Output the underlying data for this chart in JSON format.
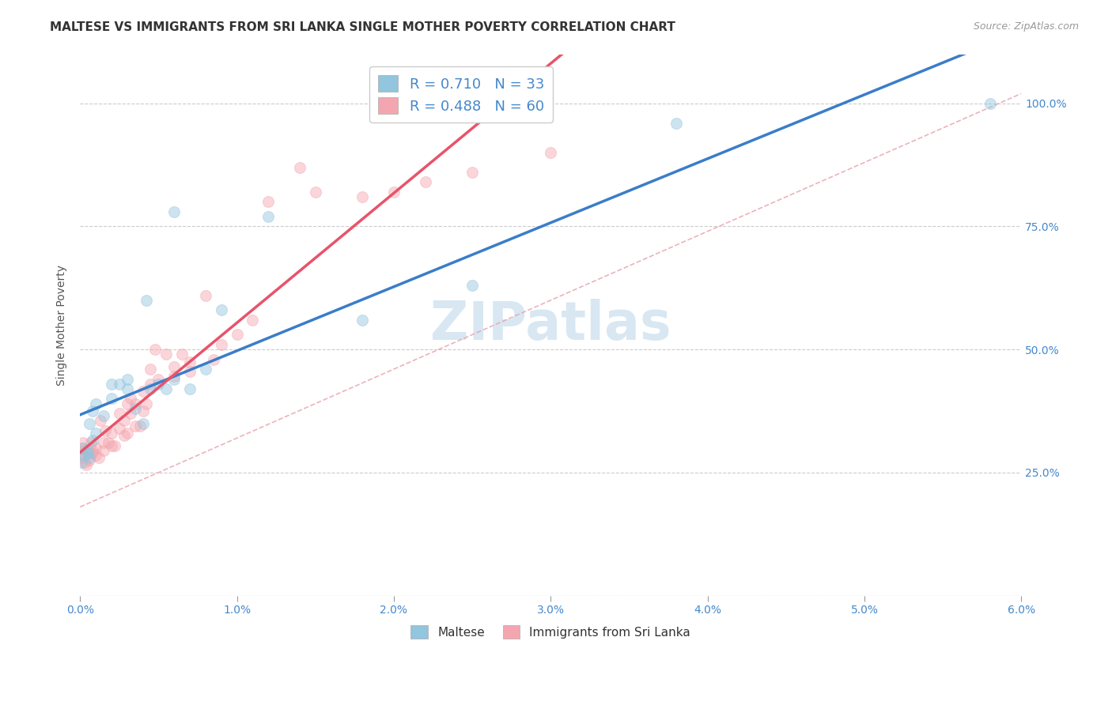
{
  "title": "MALTESE VS IMMIGRANTS FROM SRI LANKA SINGLE MOTHER POVERTY CORRELATION CHART",
  "source": "Source: ZipAtlas.com",
  "ylabel": "Single Mother Poverty",
  "xlim": [
    0.0,
    0.06
  ],
  "ylim": [
    0.0,
    1.1
  ],
  "yticks": [
    0.0,
    0.25,
    0.5,
    0.75,
    1.0
  ],
  "ytick_labels_right": [
    "",
    "25.0%",
    "50.0%",
    "75.0%",
    "100.0%"
  ],
  "xticks": [
    0.0,
    0.01,
    0.02,
    0.03,
    0.04,
    0.05,
    0.06
  ],
  "xtick_labels": [
    "0.0%",
    "1.0%",
    "2.0%",
    "3.0%",
    "4.0%",
    "5.0%",
    "6.0%"
  ],
  "legend_blue_r": "R = 0.710",
  "legend_blue_n": "N = 33",
  "legend_pink_r": "R = 0.488",
  "legend_pink_n": "N = 60",
  "legend_blue_label": "Maltese",
  "legend_pink_label": "Immigrants from Sri Lanka",
  "blue_color": "#92c5de",
  "pink_color": "#f4a6b0",
  "blue_line_color": "#3a7dc9",
  "pink_line_color": "#e8536a",
  "diag_color": "#f4a6b0",
  "watermark": "ZIPatlas",
  "blue_scatter_x": [
    0.0005,
    0.0008,
    0.0006,
    0.001,
    0.0005,
    0.0002,
    0.0001,
    0.0003,
    0.0006,
    0.0008,
    0.001,
    0.0015,
    0.002,
    0.002,
    0.0025,
    0.003,
    0.003,
    0.0035,
    0.004,
    0.0042,
    0.0045,
    0.005,
    0.0055,
    0.006,
    0.006,
    0.007,
    0.008,
    0.009,
    0.012,
    0.018,
    0.025,
    0.038,
    0.058
  ],
  "blue_scatter_y": [
    0.295,
    0.315,
    0.28,
    0.33,
    0.29,
    0.3,
    0.27,
    0.285,
    0.35,
    0.375,
    0.39,
    0.365,
    0.4,
    0.43,
    0.43,
    0.42,
    0.44,
    0.38,
    0.35,
    0.6,
    0.42,
    0.43,
    0.42,
    0.44,
    0.78,
    0.42,
    0.46,
    0.58,
    0.77,
    0.56,
    0.63,
    0.96,
    1.0
  ],
  "pink_scatter_x": [
    5e-05,
    0.0001,
    0.0001,
    0.0002,
    0.0003,
    0.0003,
    0.0004,
    0.0006,
    0.0007,
    0.0007,
    0.0008,
    0.0008,
    0.001,
    0.001,
    0.0012,
    0.0013,
    0.0015,
    0.0015,
    0.0016,
    0.0018,
    0.002,
    0.002,
    0.0022,
    0.0025,
    0.0025,
    0.0028,
    0.0028,
    0.003,
    0.003,
    0.0032,
    0.0032,
    0.0035,
    0.0035,
    0.0038,
    0.004,
    0.004,
    0.0042,
    0.0045,
    0.0045,
    0.0048,
    0.005,
    0.0055,
    0.006,
    0.006,
    0.0065,
    0.007,
    0.007,
    0.008,
    0.0085,
    0.009,
    0.01,
    0.011,
    0.012,
    0.014,
    0.015,
    0.018,
    0.02,
    0.022,
    0.025,
    0.03
  ],
  "pink_scatter_y": [
    0.285,
    0.3,
    0.28,
    0.31,
    0.27,
    0.295,
    0.265,
    0.275,
    0.29,
    0.31,
    0.295,
    0.29,
    0.285,
    0.3,
    0.28,
    0.355,
    0.31,
    0.295,
    0.335,
    0.31,
    0.305,
    0.33,
    0.305,
    0.37,
    0.34,
    0.325,
    0.355,
    0.39,
    0.33,
    0.37,
    0.4,
    0.345,
    0.39,
    0.345,
    0.375,
    0.415,
    0.39,
    0.43,
    0.46,
    0.5,
    0.44,
    0.49,
    0.465,
    0.445,
    0.49,
    0.455,
    0.475,
    0.61,
    0.48,
    0.51,
    0.53,
    0.56,
    0.8,
    0.87,
    0.82,
    0.81,
    0.82,
    0.84,
    0.86,
    0.9
  ],
  "title_fontsize": 11,
  "source_fontsize": 9,
  "label_fontsize": 10,
  "tick_fontsize": 10,
  "marker_size": 100,
  "marker_alpha": 0.45
}
